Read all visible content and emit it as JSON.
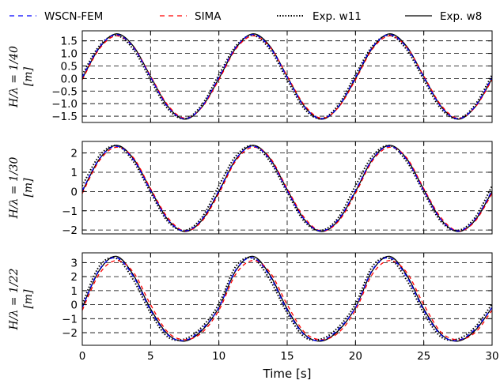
{
  "legend": {
    "items": [
      {
        "label": "WSCN-FEM",
        "color": "#0000ff",
        "style": "dashed"
      },
      {
        "label": "SIMA",
        "color": "#ff0000",
        "style": "dashed"
      },
      {
        "label": "Exp. w11",
        "color": "#000000",
        "style": "dotted"
      },
      {
        "label": "Exp. w8",
        "color": "#000000",
        "style": "solid"
      }
    ]
  },
  "xlabel": "Time [s]",
  "chart_data": [
    {
      "type": "line",
      "ylabel": "H/λ = 1/40",
      "yunit": "[m]",
      "xlim": [
        0,
        30
      ],
      "ylim": [
        -1.75,
        1.9
      ],
      "xticks": [
        "0",
        "5",
        "10",
        "15",
        "20",
        "25",
        "30"
      ],
      "yticks": [
        "1.5",
        "1.0",
        "0.5",
        "0.0",
        "−0.5",
        "−1.0",
        "−1.5"
      ],
      "ytick_values": [
        1.5,
        1.0,
        0.5,
        0.0,
        -0.5,
        -1.0,
        -1.5
      ],
      "period": 10,
      "peak_time": 2.5,
      "series": [
        {
          "name": "WSCN-FEM",
          "x": [
            0,
            1.25,
            2.5,
            3.75,
            5,
            6.25,
            7.5,
            8.75,
            10,
            11.25,
            12.5,
            13.75,
            15,
            16.25,
            17.5,
            18.75,
            20,
            21.25,
            22.5,
            23.75,
            25,
            26.25,
            27.5,
            28.75,
            30
          ],
          "y": [
            0.05,
            1.25,
            1.75,
            1.23,
            0.05,
            -1.12,
            -1.6,
            -1.12,
            0.05,
            1.25,
            1.75,
            1.23,
            0.05,
            -1.12,
            -1.6,
            -1.12,
            0.05,
            1.25,
            1.75,
            1.23,
            0.05,
            -1.12,
            -1.6,
            -1.12,
            0.05
          ]
        },
        {
          "name": "SIMA",
          "x": [
            0,
            1.25,
            2.5,
            3.75,
            5,
            6.25,
            7.5,
            8.75,
            10,
            11.25,
            12.5,
            13.75,
            15,
            16.25,
            17.5,
            18.75,
            20,
            21.25,
            22.5,
            23.75,
            25,
            26.25,
            27.5,
            28.75,
            30
          ],
          "y": [
            -0.05,
            1.18,
            1.7,
            1.25,
            0.1,
            -1.05,
            -1.58,
            -1.15,
            -0.05,
            1.18,
            1.7,
            1.25,
            0.1,
            -1.05,
            -1.58,
            -1.15,
            -0.05,
            1.18,
            1.7,
            1.25,
            0.1,
            -1.05,
            -1.58,
            -1.15,
            -0.05
          ]
        },
        {
          "name": "Exp. w11",
          "x": [
            0,
            1.25,
            2.5,
            3.75,
            5,
            6.25,
            7.5,
            8.75,
            10,
            11.25,
            12.5,
            13.75,
            15,
            16.25,
            17.5,
            18.75,
            20,
            21.25,
            22.5,
            23.75,
            25,
            26.25,
            27.5,
            28.75,
            30
          ],
          "y": [
            0.15,
            1.3,
            1.72,
            1.15,
            -0.05,
            -1.2,
            -1.6,
            -1.05,
            0.15,
            1.3,
            1.72,
            1.15,
            -0.05,
            -1.2,
            -1.6,
            -1.05,
            0.15,
            1.3,
            1.72,
            1.15,
            -0.05,
            -1.2,
            -1.6,
            -1.05,
            0.15
          ]
        },
        {
          "name": "Exp. w8",
          "x": [
            0,
            1.25,
            2.5,
            3.75,
            5,
            6.25,
            7.5,
            8.75,
            10,
            11.25,
            12.5,
            13.75,
            15,
            16.25,
            17.5,
            18.75,
            20,
            21.25,
            22.5,
            23.75,
            25,
            26.25,
            27.5,
            28.75,
            30
          ],
          "y": [
            0.0,
            1.22,
            1.78,
            1.28,
            0.08,
            -1.1,
            -1.62,
            -1.14,
            0.0,
            1.22,
            1.78,
            1.28,
            0.08,
            -1.1,
            -1.62,
            -1.14,
            0.0,
            1.22,
            1.78,
            1.28,
            0.08,
            -1.1,
            -1.62,
            -1.14,
            0.0
          ]
        }
      ]
    },
    {
      "type": "line",
      "ylabel": "H/λ = 1/30",
      "yunit": "[m]",
      "xlim": [
        0,
        30
      ],
      "ylim": [
        -2.2,
        2.6
      ],
      "xticks": [
        "0",
        "5",
        "10",
        "15",
        "20",
        "25",
        "30"
      ],
      "yticks": [
        "2",
        "1",
        "0",
        "−1",
        "−2"
      ],
      "ytick_values": [
        2,
        1,
        0,
        -1,
        -2
      ],
      "period": 10,
      "peak_time": 2.5,
      "series": [
        {
          "name": "WSCN-FEM",
          "x": [
            0,
            1.25,
            2.5,
            3.75,
            5,
            6.25,
            7.5,
            8.75,
            10,
            11.25,
            12.5,
            13.75,
            15,
            16.25,
            17.5,
            18.75,
            20,
            21.25,
            22.5,
            23.75,
            25,
            26.25,
            27.5,
            28.75,
            30
          ],
          "y": [
            0.05,
            1.7,
            2.35,
            1.65,
            0.05,
            -1.45,
            -2.05,
            -1.45,
            0.05,
            1.7,
            2.35,
            1.65,
            0.05,
            -1.45,
            -2.05,
            -1.45,
            0.05,
            1.7,
            2.35,
            1.65,
            0.05,
            -1.45,
            -2.05,
            -1.45,
            0.05
          ]
        },
        {
          "name": "SIMA",
          "x": [
            0,
            1.25,
            2.5,
            3.75,
            5,
            6.25,
            7.5,
            8.75,
            10,
            11.25,
            12.5,
            13.75,
            15,
            16.25,
            17.5,
            18.75,
            20,
            21.25,
            22.5,
            23.75,
            25,
            26.25,
            27.5,
            28.75,
            30
          ],
          "y": [
            -0.1,
            1.6,
            2.3,
            1.75,
            0.15,
            -1.35,
            -2.05,
            -1.55,
            -0.1,
            1.6,
            2.3,
            1.75,
            0.15,
            -1.35,
            -2.05,
            -1.55,
            -0.1,
            1.6,
            2.3,
            1.75,
            0.15,
            -1.35,
            -2.05,
            -1.55,
            -0.1
          ]
        },
        {
          "name": "Exp. w11",
          "x": [
            0,
            1.25,
            2.5,
            3.75,
            5,
            6.25,
            7.5,
            8.75,
            10,
            11.25,
            12.5,
            13.75,
            15,
            16.25,
            17.5,
            18.75,
            20,
            21.25,
            22.5,
            23.75,
            25,
            26.25,
            27.5,
            28.75,
            30
          ],
          "y": [
            0.3,
            1.85,
            2.38,
            1.55,
            -0.05,
            -1.55,
            -2.02,
            -1.35,
            0.3,
            1.85,
            2.38,
            1.55,
            -0.05,
            -1.55,
            -2.02,
            -1.35,
            0.3,
            1.85,
            2.38,
            1.55,
            -0.05,
            -1.55,
            -2.02,
            -1.35,
            0.3
          ]
        },
        {
          "name": "Exp. w8",
          "x": [
            0,
            1.25,
            2.5,
            3.75,
            5,
            6.25,
            7.5,
            8.75,
            10,
            11.25,
            12.5,
            13.75,
            15,
            16.25,
            17.5,
            18.75,
            20,
            21.25,
            22.5,
            23.75,
            25,
            26.25,
            27.5,
            28.75,
            30
          ],
          "y": [
            0.0,
            1.68,
            2.4,
            1.7,
            0.1,
            -1.45,
            -2.08,
            -1.5,
            0.0,
            1.68,
            2.4,
            1.7,
            0.1,
            -1.45,
            -2.08,
            -1.5,
            0.0,
            1.68,
            2.4,
            1.7,
            0.1,
            -1.45,
            -2.08,
            -1.5,
            0.0
          ]
        }
      ]
    },
    {
      "type": "line",
      "ylabel": "H/λ = 1/22",
      "yunit": "[m]",
      "xlim": [
        0,
        30
      ],
      "ylim": [
        -2.9,
        3.7
      ],
      "xticks": [
        "0",
        "5",
        "10",
        "15",
        "20",
        "25",
        "30"
      ],
      "yticks": [
        "3",
        "2",
        "1",
        "0",
        "−1",
        "−2"
      ],
      "ytick_values": [
        3,
        2,
        1,
        0,
        -1,
        -2
      ],
      "period": 10,
      "peak_time": 2.5,
      "series": [
        {
          "name": "WSCN-FEM",
          "x": [
            0,
            1.25,
            2.5,
            3.75,
            5,
            6.25,
            7.5,
            8.75,
            10,
            11.25,
            12.5,
            13.75,
            15,
            16.25,
            17.5,
            18.75,
            20,
            21.25,
            22.5,
            23.75,
            25,
            26.25,
            27.5,
            28.75,
            30
          ],
          "y": [
            -0.2,
            2.5,
            3.35,
            2.0,
            -0.4,
            -2.15,
            -2.55,
            -1.75,
            -0.2,
            2.5,
            3.35,
            2.0,
            -0.4,
            -2.15,
            -2.55,
            -1.75,
            -0.2,
            2.5,
            3.35,
            2.0,
            -0.4,
            -2.15,
            -2.55,
            -1.75,
            -0.2
          ]
        },
        {
          "name": "SIMA",
          "x": [
            0,
            1.25,
            2.5,
            3.75,
            5,
            6.25,
            7.5,
            8.75,
            10,
            11.25,
            12.5,
            13.75,
            15,
            16.25,
            17.5,
            18.75,
            20,
            21.25,
            22.5,
            23.75,
            25,
            26.25,
            27.5,
            28.75,
            30
          ],
          "y": [
            -0.4,
            2.2,
            3.15,
            2.3,
            0.0,
            -1.95,
            -2.5,
            -2.0,
            -0.4,
            2.2,
            3.15,
            2.3,
            0.0,
            -1.95,
            -2.5,
            -2.0,
            -0.4,
            2.2,
            3.15,
            2.3,
            0.0,
            -1.95,
            -2.5,
            -2.0,
            -0.4
          ]
        },
        {
          "name": "Exp. w11",
          "x": [
            0,
            1.25,
            2.5,
            3.75,
            5,
            6.25,
            7.5,
            8.75,
            10,
            11.25,
            12.5,
            13.75,
            15,
            16.25,
            17.5,
            18.75,
            20,
            21.25,
            22.5,
            23.75,
            25,
            26.25,
            27.5,
            28.75,
            30
          ],
          "y": [
            0.05,
            2.75,
            3.3,
            1.75,
            -0.6,
            -2.3,
            -2.45,
            -1.6,
            0.05,
            2.75,
            3.3,
            1.75,
            -0.6,
            -2.3,
            -2.45,
            -1.6,
            0.05,
            2.75,
            3.3,
            1.75,
            -0.6,
            -2.3,
            -2.45,
            -1.6,
            0.05
          ]
        },
        {
          "name": "Exp. w8",
          "x": [
            0,
            1.25,
            2.5,
            3.75,
            5,
            6.25,
            7.5,
            8.75,
            10,
            11.25,
            12.5,
            13.75,
            15,
            16.25,
            17.5,
            18.75,
            20,
            21.25,
            22.5,
            23.75,
            25,
            26.25,
            27.5,
            28.75,
            30
          ],
          "y": [
            -0.2,
            2.45,
            3.45,
            2.1,
            -0.3,
            -2.1,
            -2.6,
            -1.85,
            -0.2,
            2.45,
            3.45,
            2.1,
            -0.3,
            -2.1,
            -2.6,
            -1.85,
            -0.2,
            2.45,
            3.45,
            2.1,
            -0.3,
            -2.1,
            -2.6,
            -1.85,
            -0.2
          ]
        }
      ]
    }
  ]
}
